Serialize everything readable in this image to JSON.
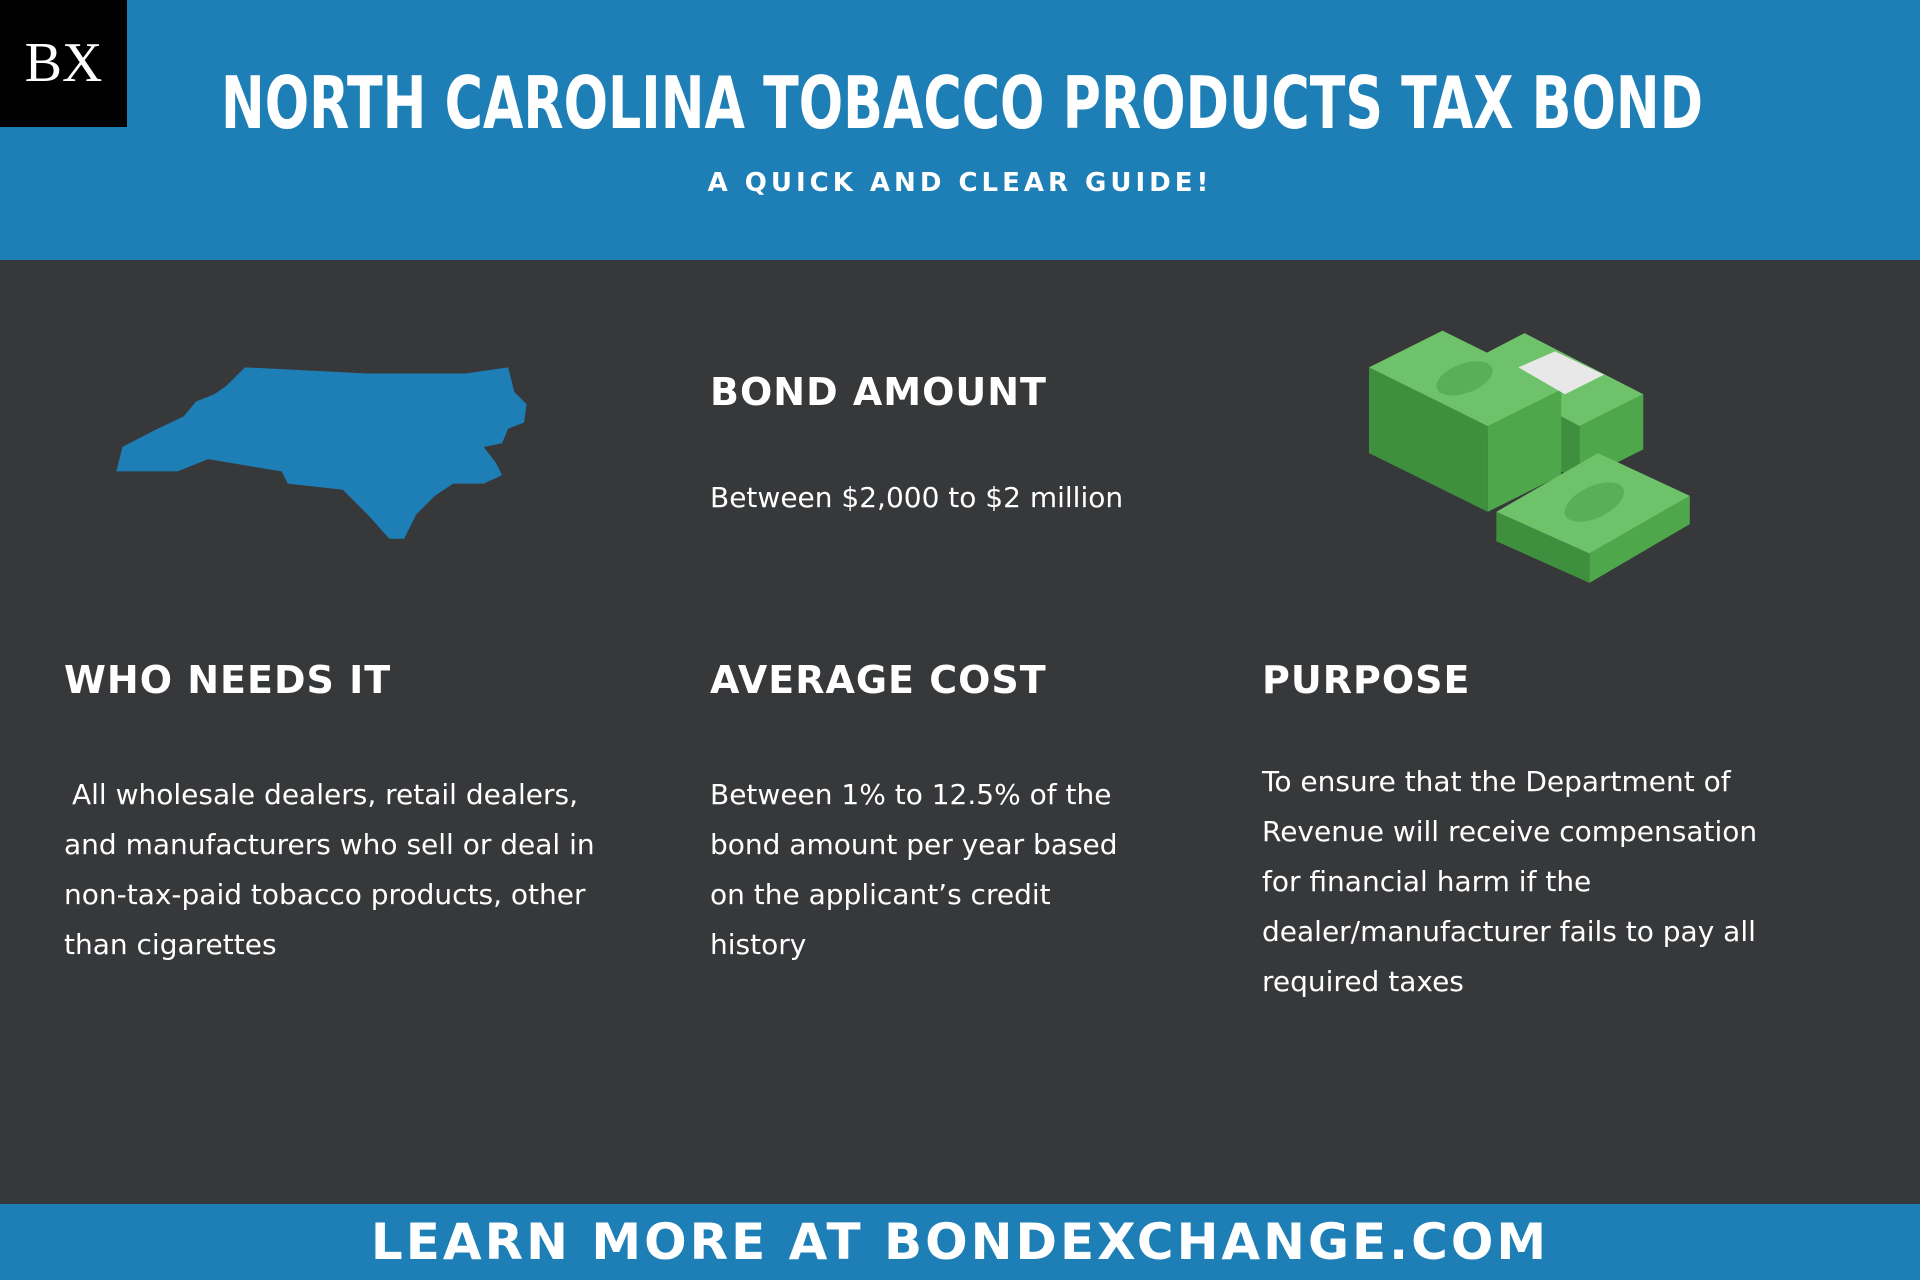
{
  "header": {
    "logo": "BX",
    "title": "NORTH CAROLINA TOBACCO PRODUCTS TAX BOND",
    "subtitle": "A QUICK AND CLEAR GUIDE!"
  },
  "bond_amount": {
    "heading": "BOND AMOUNT",
    "lines": [
      "Between $2,000 to $2 million"
    ]
  },
  "who_needs_it": {
    "heading": "WHO NEEDS IT",
    "lines": [
      "All wholesale dealers, retail dealers,",
      "and manufacturers who sell or deal in",
      "non-tax-paid tobacco products, other",
      "than cigarettes"
    ]
  },
  "average_cost": {
    "heading": "AVERAGE COST",
    "lines": [
      "Between 1% to 12.5% of the",
      "bond amount per year based",
      "on the applicant’s credit",
      "history"
    ]
  },
  "purpose": {
    "heading": "PURPOSE",
    "lines": [
      "To ensure that the Department of",
      "Revenue will receive compensation",
      "for financial harm if the",
      "dealer/manufacturer fails to pay all",
      "required taxes"
    ]
  },
  "footer": {
    "text": "LEARN MORE AT BONDEXCHANGE.COM"
  }
}
